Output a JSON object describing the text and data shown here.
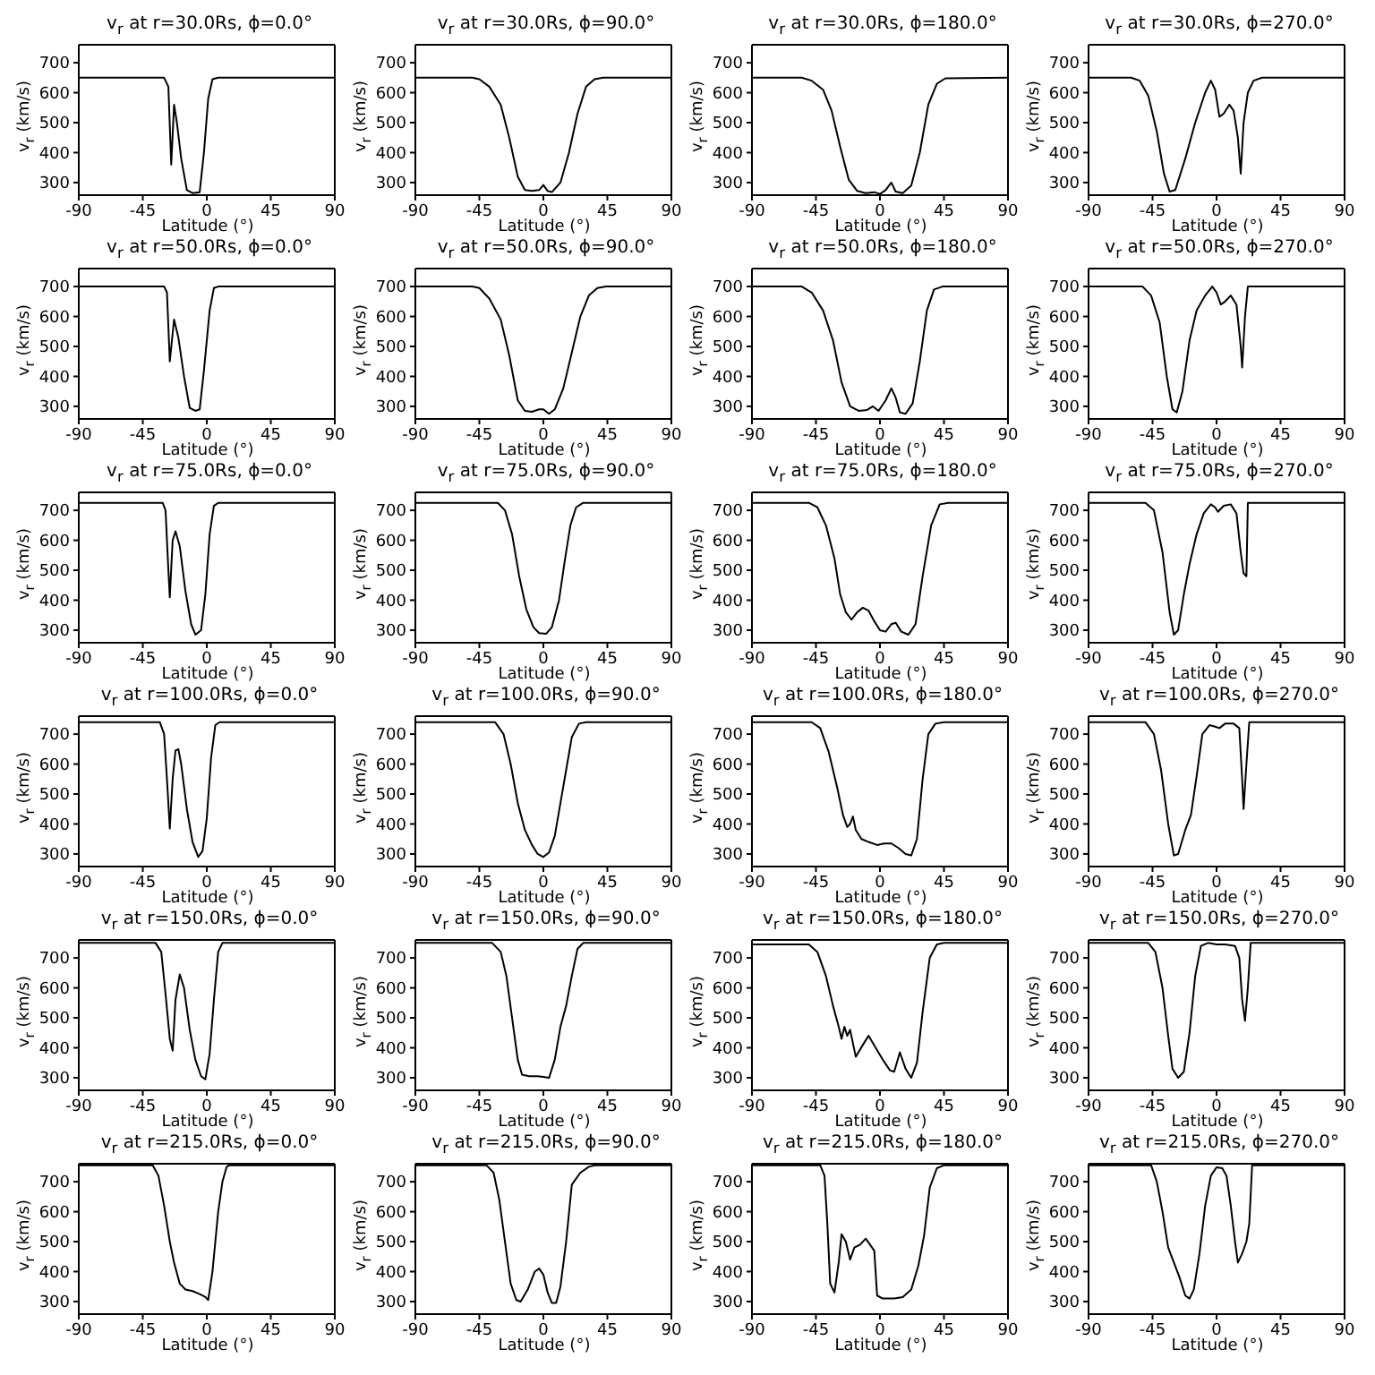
{
  "chart_data": [
    {
      "type": "line",
      "title": "v$_{r}$ at r=30.0Rs, ϕ=0.0°",
      "xlabel": "Latitude (°)",
      "ylabel": "v$_{r}$ (km/s)",
      "color": "#000000",
      "xlim": [
        -90,
        90
      ],
      "xticks": [
        -90,
        -45,
        0,
        45,
        90
      ],
      "ylim": [
        258,
        760
      ],
      "yticks": [
        300,
        400,
        500,
        600,
        700
      ],
      "x": [
        -90,
        -30,
        -27,
        -25,
        -23,
        -21,
        -18,
        -14,
        -10,
        -5,
        -2,
        1,
        4,
        8,
        90
      ],
      "values": [
        650,
        650,
        620,
        360,
        560,
        500,
        380,
        275,
        265,
        268,
        400,
        580,
        645,
        650,
        650
      ]
    },
    {
      "type": "line",
      "title": "v$_{r}$ at r=30.0Rs, ϕ=90.0°",
      "xlabel": "Latitude (°)",
      "ylabel": "v$_{r}$ (km/s)",
      "color": "#000000",
      "xlim": [
        -90,
        90
      ],
      "xticks": [
        -90,
        -45,
        0,
        45,
        90
      ],
      "ylim": [
        258,
        760
      ],
      "yticks": [
        300,
        400,
        500,
        600,
        700
      ],
      "x": [
        -90,
        -50,
        -45,
        -38,
        -30,
        -24,
        -18,
        -13,
        -8,
        -3,
        0,
        3,
        6,
        12,
        18,
        24,
        30,
        36,
        42,
        90
      ],
      "values": [
        650,
        650,
        645,
        620,
        560,
        450,
        320,
        275,
        272,
        275,
        292,
        272,
        268,
        300,
        400,
        530,
        620,
        645,
        650,
        650
      ]
    },
    {
      "type": "line",
      "title": "v$_{r}$ at r=30.0Rs, ϕ=180.0°",
      "xlabel": "Latitude (°)",
      "ylabel": "v$_{r}$ (km/s)",
      "color": "#000000",
      "xlim": [
        -90,
        90
      ],
      "xticks": [
        -90,
        -45,
        0,
        45,
        90
      ],
      "ylim": [
        258,
        760
      ],
      "yticks": [
        300,
        400,
        500,
        600,
        700
      ],
      "x": [
        -90,
        -55,
        -48,
        -40,
        -34,
        -28,
        -22,
        -16,
        -10,
        -4,
        0,
        4,
        8,
        11,
        16,
        22,
        28,
        34,
        40,
        46,
        90
      ],
      "values": [
        650,
        650,
        640,
        610,
        540,
        420,
        310,
        272,
        265,
        268,
        262,
        275,
        300,
        270,
        265,
        290,
        400,
        560,
        630,
        648,
        650
      ]
    },
    {
      "type": "line",
      "title": "v$_{r}$ at r=30.0Rs, ϕ=270.0°",
      "xlabel": "Latitude (°)",
      "ylabel": "v$_{r}$ (km/s)",
      "color": "#000000",
      "xlim": [
        -90,
        90
      ],
      "xticks": [
        -90,
        -45,
        0,
        45,
        90
      ],
      "ylim": [
        258,
        760
      ],
      "yticks": [
        300,
        400,
        500,
        600,
        700
      ],
      "x": [
        -90,
        -60,
        -54,
        -48,
        -42,
        -37,
        -33,
        -29,
        -22,
        -15,
        -8,
        -4,
        -1,
        2,
        5,
        9,
        12,
        15,
        17,
        19,
        22,
        26,
        32,
        90
      ],
      "values": [
        650,
        650,
        640,
        590,
        470,
        330,
        270,
        275,
        380,
        500,
        600,
        640,
        610,
        520,
        530,
        560,
        540,
        450,
        330,
        500,
        600,
        640,
        650,
        650
      ]
    },
    {
      "type": "line",
      "title": "v$_{r}$ at r=50.0Rs, ϕ=0.0°",
      "xlabel": "Latitude (°)",
      "ylabel": "v$_{r}$ (km/s)",
      "color": "#000000",
      "xlim": [
        -90,
        90
      ],
      "xticks": [
        -90,
        -45,
        0,
        45,
        90
      ],
      "ylim": [
        258,
        760
      ],
      "yticks": [
        300,
        400,
        500,
        600,
        700
      ],
      "x": [
        -90,
        -30,
        -28,
        -26,
        -23,
        -20,
        -16,
        -12,
        -8,
        -5,
        -2,
        2,
        5,
        8,
        90
      ],
      "values": [
        700,
        700,
        680,
        450,
        590,
        530,
        400,
        295,
        285,
        290,
        420,
        620,
        695,
        700,
        700
      ]
    },
    {
      "type": "line",
      "title": "v$_{r}$ at r=50.0Rs, ϕ=90.0°",
      "xlabel": "Latitude (°)",
      "ylabel": "v$_{r}$ (km/s)",
      "color": "#000000",
      "xlim": [
        -90,
        90
      ],
      "xticks": [
        -90,
        -45,
        0,
        45,
        90
      ],
      "ylim": [
        258,
        760
      ],
      "yticks": [
        300,
        400,
        500,
        600,
        700
      ],
      "x": [
        -90,
        -50,
        -45,
        -38,
        -30,
        -24,
        -18,
        -13,
        -8,
        -3,
        0,
        4,
        8,
        14,
        20,
        26,
        32,
        38,
        44,
        90
      ],
      "values": [
        700,
        700,
        695,
        660,
        590,
        470,
        320,
        285,
        282,
        290,
        290,
        275,
        290,
        360,
        480,
        600,
        670,
        695,
        700,
        700
      ]
    },
    {
      "type": "line",
      "title": "v$_{r}$ at r=50.0Rs, ϕ=180.0°",
      "xlabel": "Latitude (°)",
      "ylabel": "v$_{r}$ (km/s)",
      "color": "#000000",
      "xlim": [
        -90,
        90
      ],
      "xticks": [
        -90,
        -45,
        0,
        45,
        90
      ],
      "ylim": [
        258,
        760
      ],
      "yticks": [
        300,
        400,
        500,
        600,
        700
      ],
      "x": [
        -90,
        -55,
        -48,
        -40,
        -33,
        -27,
        -21,
        -15,
        -9,
        -5,
        -1,
        4,
        8,
        11,
        14,
        18,
        23,
        28,
        33,
        38,
        44,
        90
      ],
      "values": [
        700,
        700,
        680,
        620,
        520,
        380,
        300,
        285,
        288,
        300,
        285,
        320,
        360,
        330,
        280,
        275,
        310,
        450,
        620,
        690,
        700,
        700
      ]
    },
    {
      "type": "line",
      "title": "v$_{r}$ at r=50.0Rs, ϕ=270.0°",
      "xlabel": "Latitude (°)",
      "ylabel": "v$_{r}$ (km/s)",
      "color": "#000000",
      "xlim": [
        -90,
        90
      ],
      "xticks": [
        -90,
        -45,
        0,
        45,
        90
      ],
      "ylim": [
        258,
        760
      ],
      "yticks": [
        300,
        400,
        500,
        600,
        700
      ],
      "x": [
        -90,
        -52,
        -46,
        -40,
        -35,
        -31,
        -28,
        -24,
        -19,
        -14,
        -8,
        -3,
        0,
        3,
        6,
        10,
        14,
        17,
        18,
        20,
        22,
        90
      ],
      "values": [
        700,
        700,
        670,
        580,
        400,
        290,
        280,
        350,
        520,
        620,
        670,
        700,
        680,
        640,
        650,
        670,
        640,
        500,
        430,
        600,
        700,
        700
      ]
    },
    {
      "type": "line",
      "title": "v$_{r}$ at r=75.0Rs, ϕ=0.0°",
      "xlabel": "Latitude (°)",
      "ylabel": "v$_{r}$ (km/s)",
      "color": "#000000",
      "xlim": [
        -90,
        90
      ],
      "xticks": [
        -90,
        -45,
        0,
        45,
        90
      ],
      "ylim": [
        258,
        760
      ],
      "yticks": [
        300,
        400,
        500,
        600,
        700
      ],
      "x": [
        -90,
        -31,
        -29,
        -27,
        -26,
        -24,
        -22,
        -19,
        -15,
        -11,
        -8,
        -4,
        -1,
        2,
        5,
        8,
        90
      ],
      "values": [
        725,
        725,
        700,
        500,
        410,
        600,
        630,
        580,
        430,
        320,
        285,
        300,
        420,
        620,
        715,
        725,
        725
      ]
    },
    {
      "type": "line",
      "title": "v$_{r}$ at r=75.0Rs, ϕ=90.0°",
      "xlabel": "Latitude (°)",
      "ylabel": "v$_{r}$ (km/s)",
      "color": "#000000",
      "xlim": [
        -90,
        90
      ],
      "xticks": [
        -90,
        -45,
        0,
        45,
        90
      ],
      "ylim": [
        258,
        760
      ],
      "yticks": [
        300,
        400,
        500,
        600,
        700
      ],
      "x": [
        -90,
        -32,
        -27,
        -22,
        -17,
        -12,
        -7,
        -3,
        2,
        6,
        11,
        15,
        19,
        23,
        28,
        90
      ],
      "values": [
        725,
        725,
        700,
        620,
        480,
        370,
        310,
        290,
        288,
        310,
        400,
        530,
        650,
        710,
        725,
        725
      ]
    },
    {
      "type": "line",
      "title": "v$_{r}$ at r=75.0Rs, ϕ=180.0°",
      "xlabel": "Latitude (°)",
      "ylabel": "v$_{r}$ (km/s)",
      "color": "#000000",
      "xlim": [
        -90,
        90
      ],
      "xticks": [
        -90,
        -45,
        0,
        45,
        90
      ],
      "ylim": [
        258,
        760
      ],
      "yticks": [
        300,
        400,
        500,
        600,
        700
      ],
      "x": [
        -90,
        -50,
        -44,
        -38,
        -32,
        -28,
        -24,
        -20,
        -16,
        -12,
        -8,
        -4,
        0,
        4,
        8,
        11,
        15,
        20,
        25,
        30,
        36,
        42,
        48,
        90
      ],
      "values": [
        725,
        725,
        710,
        650,
        540,
        420,
        360,
        335,
        360,
        375,
        365,
        330,
        300,
        295,
        320,
        325,
        295,
        285,
        320,
        480,
        650,
        720,
        725,
        725
      ]
    },
    {
      "type": "line",
      "title": "v$_{r}$ at r=75.0Rs, ϕ=270.0°",
      "xlabel": "Latitude (°)",
      "ylabel": "v$_{r}$ (km/s)",
      "color": "#000000",
      "xlim": [
        -90,
        90
      ],
      "xticks": [
        -90,
        -45,
        0,
        45,
        90
      ],
      "ylim": [
        258,
        760
      ],
      "yticks": [
        300,
        400,
        500,
        600,
        700
      ],
      "x": [
        -90,
        -50,
        -44,
        -38,
        -33,
        -30,
        -27,
        -23,
        -19,
        -14,
        -9,
        -4,
        -1,
        1,
        5,
        10,
        14,
        17,
        19,
        21,
        22,
        90
      ],
      "values": [
        725,
        725,
        700,
        560,
        360,
        285,
        300,
        420,
        520,
        620,
        690,
        720,
        710,
        695,
        715,
        720,
        690,
        560,
        490,
        480,
        725,
        725
      ]
    },
    {
      "type": "line",
      "title": "v$_{r}$ at r=100.0Rs, ϕ=0.0°",
      "xlabel": "Latitude (°)",
      "ylabel": "v$_{r}$ (km/s)",
      "color": "#000000",
      "xlim": [
        -90,
        90
      ],
      "xticks": [
        -90,
        -45,
        0,
        45,
        90
      ],
      "ylim": [
        258,
        760
      ],
      "yticks": [
        300,
        400,
        500,
        600,
        700
      ],
      "x": [
        -90,
        -33,
        -30,
        -28,
        -26,
        -24,
        -22,
        -20,
        -18,
        -14,
        -10,
        -6,
        -3,
        0,
        3,
        6,
        9,
        90
      ],
      "values": [
        740,
        740,
        700,
        550,
        385,
        550,
        645,
        650,
        600,
        450,
        340,
        290,
        310,
        420,
        620,
        730,
        740,
        740
      ]
    },
    {
      "type": "line",
      "title": "v$_{r}$ at r=100.0Rs, ϕ=90.0°",
      "xlabel": "Latitude (°)",
      "ylabel": "v$_{r}$ (km/s)",
      "color": "#000000",
      "xlim": [
        -90,
        90
      ],
      "xticks": [
        -90,
        -45,
        0,
        45,
        90
      ],
      "ylim": [
        258,
        760
      ],
      "yticks": [
        300,
        400,
        500,
        600,
        700
      ],
      "x": [
        -90,
        -34,
        -28,
        -23,
        -18,
        -13,
        -8,
        -4,
        0,
        4,
        8,
        12,
        16,
        20,
        25,
        30,
        90
      ],
      "values": [
        740,
        740,
        700,
        600,
        470,
        380,
        330,
        300,
        290,
        305,
        360,
        470,
        580,
        690,
        735,
        740,
        740
      ]
    },
    {
      "type": "line",
      "title": "v$_{r}$ at r=100.0Rs, ϕ=180.0°",
      "xlabel": "Latitude (°)",
      "ylabel": "v$_{r}$ (km/s)",
      "color": "#000000",
      "xlim": [
        -90,
        90
      ],
      "xticks": [
        -90,
        -45,
        0,
        45,
        90
      ],
      "ylim": [
        258,
        760
      ],
      "yticks": [
        300,
        400,
        500,
        600,
        700
      ],
      "x": [
        -90,
        -48,
        -42,
        -36,
        -30,
        -26,
        -23,
        -21,
        -19,
        -17,
        -13,
        -8,
        -2,
        3,
        8,
        13,
        18,
        22,
        26,
        30,
        34,
        39,
        45,
        90
      ],
      "values": [
        740,
        740,
        720,
        640,
        520,
        430,
        390,
        400,
        425,
        380,
        350,
        340,
        330,
        335,
        335,
        320,
        300,
        295,
        350,
        550,
        700,
        735,
        740,
        740
      ]
    },
    {
      "type": "line",
      "title": "v$_{r}$ at r=100.0Rs, ϕ=270.0°",
      "xlabel": "Latitude (°)",
      "ylabel": "v$_{r}$ (km/s)",
      "color": "#000000",
      "xlim": [
        -90,
        90
      ],
      "xticks": [
        -90,
        -45,
        0,
        45,
        90
      ],
      "ylim": [
        258,
        760
      ],
      "yticks": [
        300,
        400,
        500,
        600,
        700
      ],
      "x": [
        -90,
        -50,
        -44,
        -39,
        -34,
        -30,
        -27,
        -22,
        -18,
        -14,
        -10,
        -5,
        -1,
        2,
        6,
        12,
        16,
        18,
        19,
        21,
        23,
        90
      ],
      "values": [
        740,
        740,
        700,
        580,
        400,
        295,
        300,
        380,
        430,
        560,
        700,
        730,
        725,
        720,
        735,
        735,
        720,
        550,
        450,
        600,
        740,
        740
      ]
    },
    {
      "type": "line",
      "title": "v$_{r}$ at r=150.0Rs, ϕ=0.0°",
      "xlabel": "Latitude (°)",
      "ylabel": "v$_{r}$ (km/s)",
      "color": "#000000",
      "xlim": [
        -90,
        90
      ],
      "xticks": [
        -90,
        -45,
        0,
        45,
        90
      ],
      "ylim": [
        258,
        760
      ],
      "yticks": [
        300,
        400,
        500,
        600,
        700
      ],
      "x": [
        -90,
        -36,
        -32,
        -29,
        -26,
        -24,
        -22,
        -19,
        -16,
        -12,
        -8,
        -4,
        -1,
        2,
        5,
        8,
        11,
        90
      ],
      "values": [
        750,
        750,
        720,
        580,
        430,
        390,
        560,
        645,
        600,
        460,
        360,
        305,
        295,
        380,
        560,
        720,
        750,
        750
      ]
    },
    {
      "type": "line",
      "title": "v$_{r}$ at r=150.0Rs, ϕ=90.0°",
      "xlabel": "Latitude (°)",
      "ylabel": "v$_{r}$ (km/s)",
      "color": "#000000",
      "xlim": [
        -90,
        90
      ],
      "xticks": [
        -90,
        -45,
        0,
        45,
        90
      ],
      "ylim": [
        258,
        760
      ],
      "yticks": [
        300,
        400,
        500,
        600,
        700
      ],
      "x": [
        -90,
        -36,
        -30,
        -26,
        -22,
        -18,
        -15,
        -10,
        -4,
        0,
        4,
        8,
        12,
        16,
        20,
        24,
        28,
        90
      ],
      "values": [
        750,
        750,
        720,
        640,
        500,
        360,
        310,
        305,
        305,
        303,
        300,
        360,
        470,
        540,
        640,
        730,
        750,
        750
      ]
    },
    {
      "type": "line",
      "title": "v$_{r}$ at r=150.0Rs, ϕ=180.0°",
      "xlabel": "Latitude (°)",
      "ylabel": "v$_{r}$ (km/s)",
      "color": "#000000",
      "xlim": [
        -90,
        90
      ],
      "xticks": [
        -90,
        -45,
        0,
        45,
        90
      ],
      "ylim": [
        258,
        760
      ],
      "yticks": [
        300,
        400,
        500,
        600,
        700
      ],
      "x": [
        -90,
        -50,
        -44,
        -38,
        -33,
        -29,
        -27,
        -25,
        -23,
        -21,
        -17,
        -12,
        -8,
        -3,
        2,
        7,
        10,
        14,
        18,
        22,
        26,
        30,
        35,
        40,
        45,
        90
      ],
      "values": [
        745,
        745,
        720,
        640,
        540,
        470,
        430,
        470,
        440,
        460,
        370,
        410,
        440,
        400,
        360,
        325,
        320,
        385,
        330,
        300,
        350,
        520,
        700,
        745,
        750,
        750
      ]
    },
    {
      "type": "line",
      "title": "v$_{r}$ at r=150.0Rs, ϕ=270.0°",
      "xlabel": "Latitude (°)",
      "ylabel": "v$_{r}$ (km/s)",
      "color": "#000000",
      "xlim": [
        -90,
        90
      ],
      "xticks": [
        -90,
        -45,
        0,
        45,
        90
      ],
      "ylim": [
        258,
        760
      ],
      "yticks": [
        300,
        400,
        500,
        600,
        700
      ],
      "x": [
        -90,
        -48,
        -43,
        -38,
        -34,
        -31,
        -27,
        -23,
        -19,
        -15,
        -11,
        -6,
        0,
        6,
        13,
        16,
        18,
        20,
        22,
        24,
        90
      ],
      "values": [
        750,
        750,
        720,
        600,
        440,
        330,
        300,
        320,
        450,
        640,
        740,
        750,
        745,
        745,
        740,
        700,
        560,
        490,
        600,
        750,
        750
      ]
    },
    {
      "type": "line",
      "title": "v$_{r}$ at r=215.0Rs, ϕ=0.0°",
      "xlabel": "Latitude (°)",
      "ylabel": "v$_{r}$ (km/s)",
      "color": "#000000",
      "xlim": [
        -90,
        90
      ],
      "xticks": [
        -90,
        -45,
        0,
        45,
        90
      ],
      "ylim": [
        258,
        760
      ],
      "yticks": [
        300,
        400,
        500,
        600,
        700
      ],
      "x": [
        -90,
        -38,
        -34,
        -30,
        -26,
        -23,
        -19,
        -15,
        -10,
        -5,
        -1,
        1,
        4,
        8,
        11,
        14,
        16,
        90
      ],
      "values": [
        755,
        755,
        720,
        620,
        500,
        430,
        360,
        340,
        335,
        325,
        315,
        305,
        400,
        600,
        700,
        750,
        755,
        755
      ]
    },
    {
      "type": "line",
      "title": "v$_{r}$ at r=215.0Rs, ϕ=90.0°",
      "xlabel": "Latitude (°)",
      "ylabel": "v$_{r}$ (km/s)",
      "color": "#000000",
      "xlim": [
        -90,
        90
      ],
      "xticks": [
        -90,
        -45,
        0,
        45,
        90
      ],
      "ylim": [
        258,
        760
      ],
      "yticks": [
        300,
        400,
        500,
        600,
        700
      ],
      "x": [
        -90,
        -40,
        -35,
        -31,
        -27,
        -23,
        -19,
        -16,
        -11,
        -6,
        -3,
        0,
        3,
        6,
        9,
        12,
        16,
        20,
        26,
        32,
        36,
        90
      ],
      "values": [
        755,
        755,
        730,
        640,
        500,
        360,
        305,
        300,
        340,
        400,
        410,
        390,
        330,
        295,
        295,
        350,
        500,
        690,
        730,
        750,
        755,
        755
      ]
    },
    {
      "type": "line",
      "title": "v$_{r}$ at r=215.0Rs, ϕ=180.0°",
      "xlabel": "Latitude (°)",
      "ylabel": "v$_{r}$ (km/s)",
      "color": "#000000",
      "xlim": [
        -90,
        90
      ],
      "xticks": [
        -90,
        -45,
        0,
        45,
        90
      ],
      "ylim": [
        258,
        760
      ],
      "yticks": [
        300,
        400,
        500,
        600,
        700
      ],
      "x": [
        -90,
        -42,
        -39,
        -37,
        -35,
        -32,
        -29,
        -27,
        -24,
        -21,
        -18,
        -14,
        -10,
        -7,
        -4,
        -2,
        2,
        10,
        16,
        22,
        27,
        31,
        35,
        40,
        45,
        90
      ],
      "values": [
        755,
        755,
        720,
        560,
        360,
        330,
        430,
        525,
        500,
        440,
        480,
        490,
        510,
        490,
        470,
        320,
        310,
        310,
        315,
        340,
        420,
        520,
        680,
        745,
        755,
        755
      ]
    },
    {
      "type": "line",
      "title": "v$_{r}$ at r=215.0Rs, ϕ=270.0°",
      "xlabel": "Latitude (°)",
      "ylabel": "v$_{r}$ (km/s)",
      "color": "#000000",
      "xlim": [
        -90,
        90
      ],
      "xticks": [
        -90,
        -45,
        0,
        45,
        90
      ],
      "ylim": [
        258,
        760
      ],
      "yticks": [
        300,
        400,
        500,
        600,
        700
      ],
      "x": [
        -90,
        -46,
        -42,
        -38,
        -34,
        -30,
        -26,
        -22,
        -19,
        -16,
        -12,
        -8,
        -4,
        0,
        4,
        7,
        10,
        13,
        15,
        18,
        21,
        23,
        25,
        90
      ],
      "values": [
        755,
        755,
        700,
        600,
        480,
        430,
        380,
        320,
        310,
        340,
        460,
        620,
        720,
        748,
        745,
        720,
        620,
        500,
        430,
        460,
        500,
        560,
        755,
        755
      ]
    }
  ]
}
